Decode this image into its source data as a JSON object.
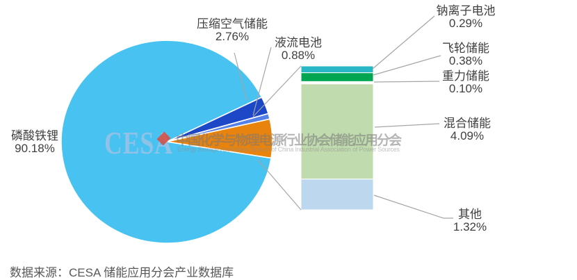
{
  "chart_data": {
    "type": "pie",
    "subtype": "bar-of-pie",
    "title": "",
    "unit": "%",
    "slices": [
      {
        "label": "磷酸铁锂",
        "display": "90.18%",
        "value": 90.18,
        "color": "#47c2f1"
      },
      {
        "label": "压缩空气储能",
        "display": "2.76%",
        "value": 2.76,
        "color": "#1c47c6"
      },
      {
        "label": "液流电池",
        "display": "0.88%",
        "value": 0.88,
        "color": "#5580e8"
      },
      {
        "label": "",
        "display": "",
        "value": 6.18,
        "color": "#e8830e"
      }
    ],
    "bar_segments": [
      {
        "label": "钠离子电池",
        "display": "0.29%",
        "value": 0.29,
        "color": "#29b6c5"
      },
      {
        "label": "飞轮储能",
        "display": "0.38%",
        "value": 0.38,
        "color": "#00a551"
      },
      {
        "label": "重力储能",
        "display": "0.10%",
        "value": 0.1,
        "color": "#ffffff"
      },
      {
        "label": "混合储能",
        "display": "4.09%",
        "value": 4.09,
        "color": "#c0dcae"
      },
      {
        "label": "其他",
        "display": "1.32%",
        "value": 1.32,
        "color": "#bdd7ee"
      }
    ],
    "legend_position": "callout-labels",
    "grid": false
  },
  "watermark": {
    "logo_text": "CESA",
    "cn": "中国化学与物理电源行业协会储能应用分会",
    "en": "Energy Storage Application Branch of China Industrial Association of Power Sources"
  },
  "source_note": "数据来源：CESA 储能应用分会产业数据库",
  "colors": {
    "leader_line": "#a6a6a6",
    "label_text": "#404040",
    "source_text": "#595959",
    "background": "#ffffff"
  }
}
